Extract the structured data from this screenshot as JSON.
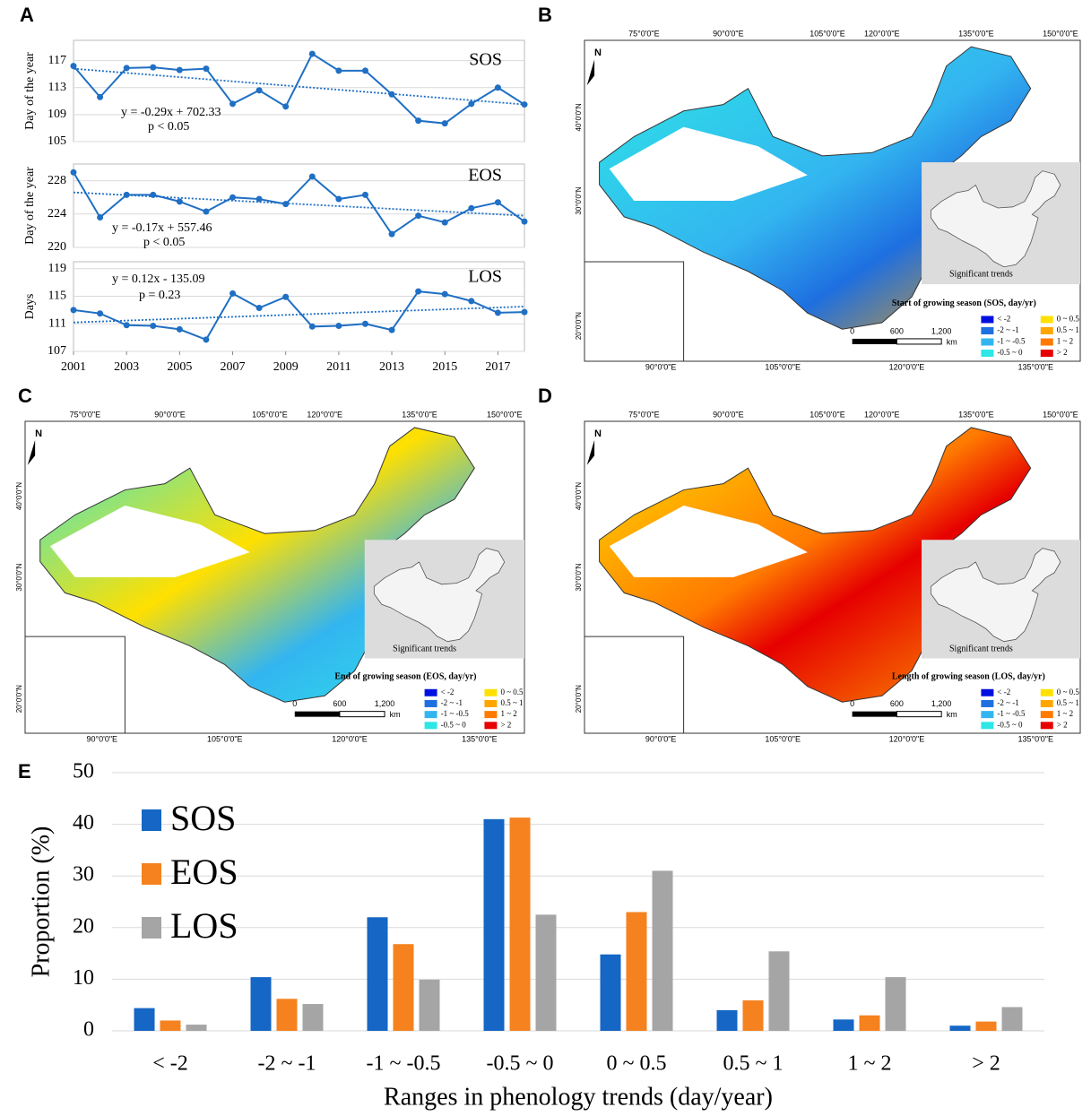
{
  "chart_data": [
    {
      "type": "line",
      "panel": "A",
      "title": "SOS",
      "y_label": "Day of the year",
      "annotations": [
        "y = -0.29x + 702.33",
        "p < 0.05"
      ],
      "color": "#1f6fc4",
      "x": [
        2001,
        2002,
        2003,
        2004,
        2005,
        2006,
        2007,
        2008,
        2009,
        2010,
        2011,
        2012,
        2013,
        2014,
        2015,
        2016,
        2017,
        2018
      ],
      "values": [
        116.2,
        111.6,
        115.9,
        116.0,
        115.6,
        115.8,
        110.6,
        112.6,
        110.2,
        118.0,
        115.5,
        115.5,
        112.0,
        108.1,
        107.7,
        110.6,
        113.0,
        110.5
      ],
      "trend": [
        115.8,
        110.5
      ],
      "xlim": [
        2001,
        2018
      ],
      "ylim": [
        105,
        120
      ],
      "yticks": [
        105,
        109,
        113,
        117
      ],
      "grid": true
    },
    {
      "type": "line",
      "title": "EOS",
      "y_label": "Day of the year",
      "annotations": [
        "y = -0.17x + 557.46",
        "p < 0.05"
      ],
      "color": "#1f6fc4",
      "x": [
        2001,
        2002,
        2003,
        2004,
        2005,
        2006,
        2007,
        2008,
        2009,
        2010,
        2011,
        2012,
        2013,
        2014,
        2015,
        2016,
        2017,
        2018
      ],
      "values": [
        229.0,
        223.6,
        226.3,
        226.3,
        225.5,
        224.3,
        226.0,
        225.8,
        225.2,
        228.5,
        225.8,
        226.3,
        221.6,
        223.8,
        223.0,
        224.7,
        225.4,
        223.1
      ],
      "trend": [
        226.6,
        223.8
      ],
      "xlim": [
        2001,
        2018
      ],
      "ylim": [
        220,
        230
      ],
      "yticks": [
        220,
        224,
        228
      ],
      "grid": true
    },
    {
      "type": "line",
      "title": "LOS",
      "y_label": "Days",
      "annotations": [
        "y = 0.12x - 135.09",
        "p = 0.23"
      ],
      "color": "#1f6fc4",
      "x": [
        2001,
        2002,
        2003,
        2004,
        2005,
        2006,
        2007,
        2008,
        2009,
        2010,
        2011,
        2012,
        2013,
        2014,
        2015,
        2016,
        2017,
        2018
      ],
      "values": [
        113.0,
        112.5,
        110.8,
        110.7,
        110.2,
        108.7,
        115.4,
        113.3,
        114.9,
        110.6,
        110.7,
        111.0,
        110.1,
        115.7,
        115.3,
        114.3,
        112.6,
        112.7
      ],
      "trend": [
        111.2,
        113.5
      ],
      "xlim": [
        2001,
        2018
      ],
      "ylim": [
        107,
        120
      ],
      "yticks": [
        107,
        111,
        115,
        119
      ],
      "xticks": [
        2001,
        2003,
        2005,
        2007,
        2009,
        2011,
        2013,
        2015,
        2017
      ],
      "grid": true
    },
    {
      "type": "bar",
      "panel": "E",
      "y_label": "Proportion (%)",
      "x_label": "Ranges in phenology trends (day/year)",
      "categories": [
        "< -2",
        "-2 ~ -1",
        "-1 ~ -0.5",
        "-0.5 ~ 0",
        "0 ~ 0.5",
        "0.5 ~ 1",
        "1 ~ 2",
        "> 2"
      ],
      "series": [
        {
          "name": "SOS",
          "color": "#1566c5",
          "values": [
            4.4,
            10.4,
            22.0,
            41.0,
            14.8,
            4.0,
            2.2,
            1.0
          ]
        },
        {
          "name": "EOS",
          "color": "#f5821f",
          "values": [
            2.0,
            6.2,
            16.8,
            41.3,
            23.0,
            5.9,
            3.0,
            1.8
          ]
        },
        {
          "name": "LOS",
          "color": "#a5a5a5",
          "values": [
            1.2,
            5.2,
            9.9,
            22.5,
            31.0,
            15.4,
            10.4,
            4.6
          ]
        }
      ],
      "ylim": [
        0,
        50
      ],
      "yticks": [
        0,
        10,
        20,
        30,
        40,
        50
      ],
      "grid": true,
      "legend": "upper-left"
    }
  ],
  "maps": [
    {
      "panel": "B",
      "title": "Start of growing season (SOS, day/yr)",
      "north": "N",
      "inset_label": "Significant trends",
      "lon_top": [
        "75°0'0\"E",
        "90°0'0\"E",
        "105°0'0\"E",
        "120°0'0\"E",
        "135°0'0\"E",
        "150°0'0\"E"
      ],
      "lon_bottom": [
        "90°0'0\"E",
        "105°0'0\"E",
        "120°0'0\"E",
        "135°0'0\"E"
      ],
      "lat": [
        "40°0'0\"N",
        "30°0'0\"N",
        "20°0'0\"N"
      ],
      "scale": [
        "0",
        "600",
        "1,200"
      ],
      "scale_unit": "km",
      "legend": [
        {
          "label": "< -2",
          "color": "#0010e0"
        },
        {
          "label": "-2 ~ -1",
          "color": "#1e6fe0"
        },
        {
          "label": "-1 ~ -0.5",
          "color": "#33b5f0"
        },
        {
          "label": "-0.5 ~ 0",
          "color": "#2de6e6"
        },
        {
          "label": "0 ~ 0.5",
          "color": "#ffe000"
        },
        {
          "label": "0.5 ~ 1",
          "color": "#ffa500"
        },
        {
          "label": "1 ~ 2",
          "color": "#ff7a00"
        },
        {
          "label": "> 2",
          "color": "#e60000"
        }
      ]
    },
    {
      "panel": "C",
      "title": "End of growing season (EOS, day/yr)",
      "north": "N",
      "inset_label": "Significant trends",
      "lon_top": [
        "75°0'0\"E",
        "90°0'0\"E",
        "105°0'0\"E",
        "120°0'0\"E",
        "135°0'0\"E",
        "150°0'0\"E"
      ],
      "lon_bottom": [
        "90°0'0\"E",
        "105°0'0\"E",
        "120°0'0\"E",
        "135°0'0\"E"
      ],
      "lat": [
        "40°0'0\"N",
        "30°0'0\"N",
        "20°0'0\"N"
      ],
      "scale": [
        "0",
        "600",
        "1,200"
      ],
      "scale_unit": "km",
      "legend": [
        {
          "label": "< -2",
          "color": "#0010e0"
        },
        {
          "label": "-2 ~ -1",
          "color": "#1e6fe0"
        },
        {
          "label": "-1 ~ -0.5",
          "color": "#33b5f0"
        },
        {
          "label": "-0.5 ~ 0",
          "color": "#2de6e6"
        },
        {
          "label": "0 ~ 0.5",
          "color": "#ffe000"
        },
        {
          "label": "0.5 ~ 1",
          "color": "#ffa500"
        },
        {
          "label": "1 ~ 2",
          "color": "#ff7a00"
        },
        {
          "label": "> 2",
          "color": "#e60000"
        }
      ]
    },
    {
      "panel": "D",
      "title": "Length of growing season (LOS, day/yr)",
      "north": "N",
      "inset_label": "Significant trends",
      "lon_top": [
        "75°0'0\"E",
        "90°0'0\"E",
        "105°0'0\"E",
        "120°0'0\"E",
        "135°0'0\"E",
        "150°0'0\"E"
      ],
      "lon_bottom": [
        "90°0'0\"E",
        "105°0'0\"E",
        "120°0'0\"E",
        "135°0'0\"E"
      ],
      "lat": [
        "40°0'0\"N",
        "30°0'0\"N",
        "20°0'0\"N"
      ],
      "scale": [
        "0",
        "600",
        "1,200"
      ],
      "scale_unit": "km",
      "legend": [
        {
          "label": "< -2",
          "color": "#0010e0"
        },
        {
          "label": "-2 ~ -1",
          "color": "#1e6fe0"
        },
        {
          "label": "-1 ~ -0.5",
          "color": "#33b5f0"
        },
        {
          "label": "-0.5 ~ 0",
          "color": "#2de6e6"
        },
        {
          "label": "0 ~ 0.5",
          "color": "#ffe000"
        },
        {
          "label": "0.5 ~ 1",
          "color": "#ffa500"
        },
        {
          "label": "1 ~ 2",
          "color": "#ff7a00"
        },
        {
          "label": "> 2",
          "color": "#e60000"
        }
      ]
    }
  ]
}
